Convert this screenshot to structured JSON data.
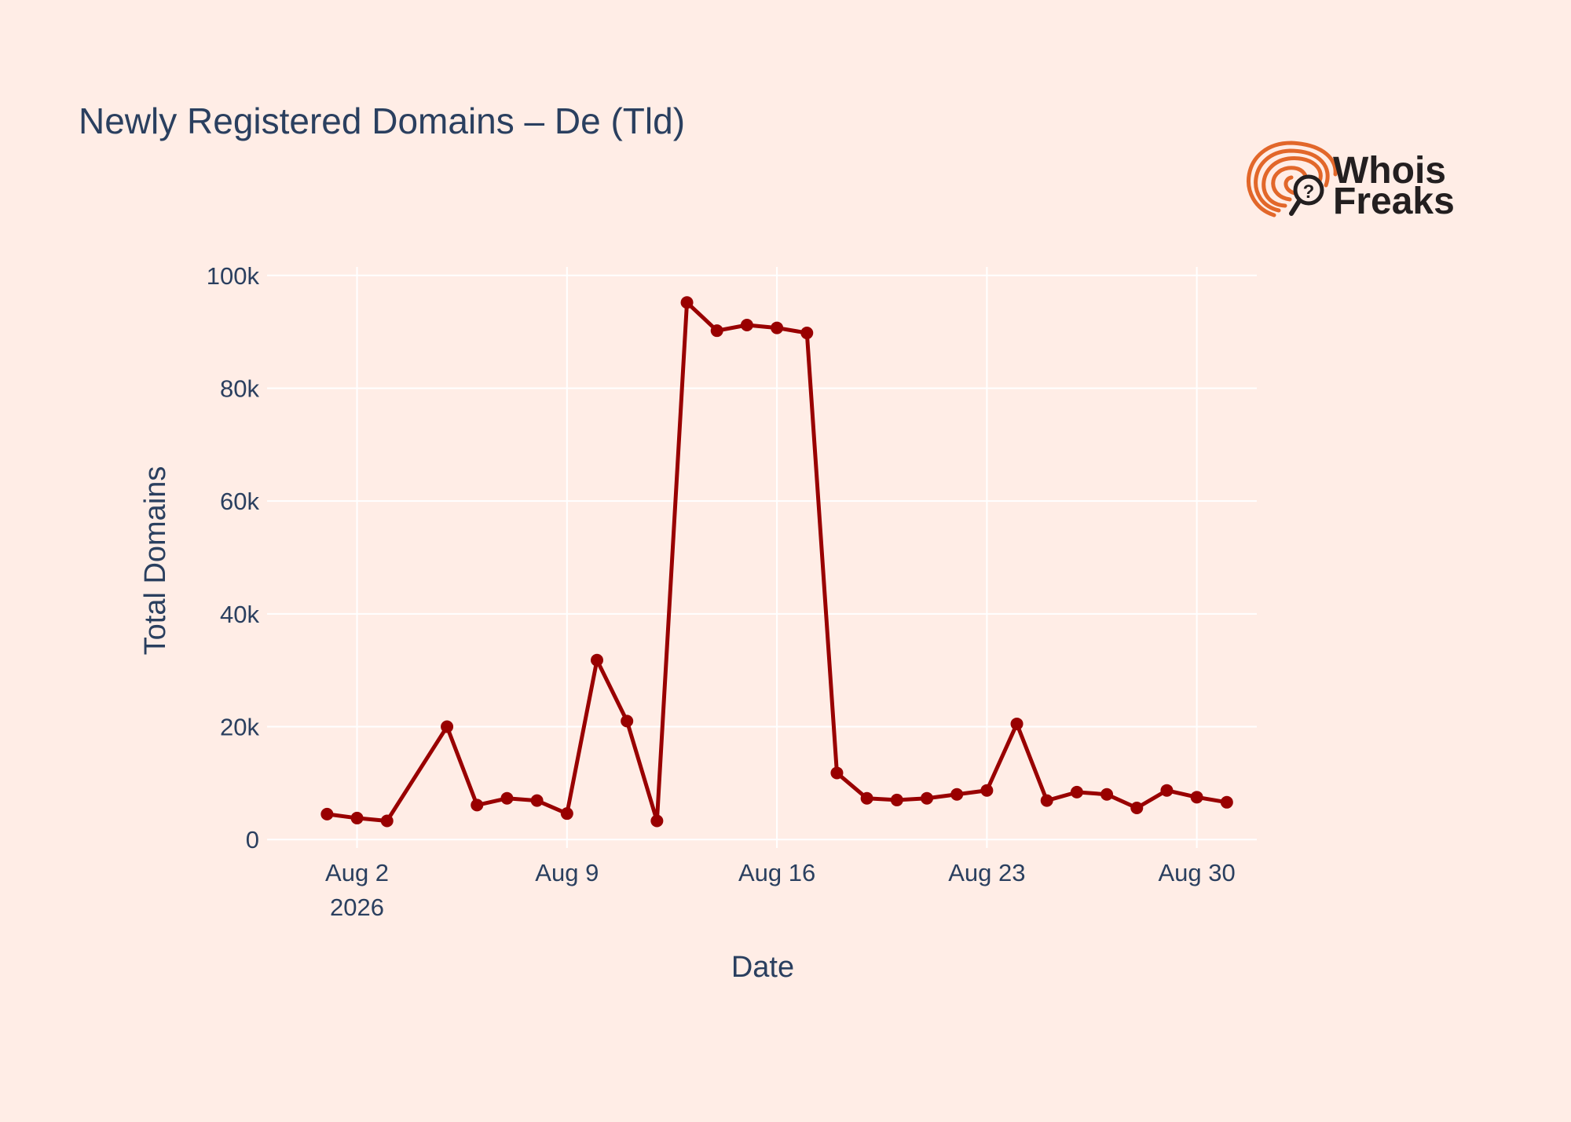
{
  "chart_data": {
    "type": "line",
    "title": "Newly Registered Domains – De (Tld)",
    "xlabel": "Date",
    "ylabel": "Total Domains",
    "x_ticks": [
      {
        "date": "2026-08-02",
        "label": "Aug 2",
        "sublabel": "2026"
      },
      {
        "date": "2026-08-09",
        "label": "Aug 9",
        "sublabel": ""
      },
      {
        "date": "2026-08-16",
        "label": "Aug 16",
        "sublabel": ""
      },
      {
        "date": "2026-08-23",
        "label": "Aug 23",
        "sublabel": ""
      },
      {
        "date": "2026-08-30",
        "label": "Aug 30",
        "sublabel": ""
      }
    ],
    "y_ticks": [
      {
        "value": 0,
        "label": "0"
      },
      {
        "value": 20000,
        "label": "20k"
      },
      {
        "value": 40000,
        "label": "40k"
      },
      {
        "value": 60000,
        "label": "60k"
      },
      {
        "value": 80000,
        "label": "80k"
      },
      {
        "value": 100000,
        "label": "100k"
      }
    ],
    "xlim": [
      "2026-07-30",
      "2026-09-01"
    ],
    "ylim": [
      -1500,
      101500
    ],
    "grid": true,
    "legend": "none",
    "series": [
      {
        "color": "#990000",
        "x": [
          "2026-08-01",
          "2026-08-02",
          "2026-08-03",
          "2026-08-05",
          "2026-08-06",
          "2026-08-07",
          "2026-08-08",
          "2026-08-09",
          "2026-08-10",
          "2026-08-11",
          "2026-08-12",
          "2026-08-13",
          "2026-08-14",
          "2026-08-15",
          "2026-08-16",
          "2026-08-17",
          "2026-08-18",
          "2026-08-19",
          "2026-08-20",
          "2026-08-21",
          "2026-08-22",
          "2026-08-23",
          "2026-08-24",
          "2026-08-25",
          "2026-08-26",
          "2026-08-27",
          "2026-08-28",
          "2026-08-29",
          "2026-08-30",
          "2026-08-31"
        ],
        "y": [
          4500,
          3800,
          3300,
          20000,
          6100,
          7300,
          6900,
          4600,
          31800,
          21000,
          3300,
          95200,
          90200,
          91200,
          90700,
          89800,
          11800,
          7300,
          7000,
          7300,
          8000,
          8700,
          20500,
          6900,
          8400,
          8000,
          5600,
          8700,
          7500,
          6600
        ]
      }
    ]
  },
  "logo": {
    "line1": "Whois",
    "line2": "Freaks",
    "icon": "fingerprint-search-icon",
    "colors": {
      "mark": "#e2672a",
      "text": "#231f20"
    }
  },
  "colors": {
    "background": "#ffede6",
    "grid": "#ffffff",
    "text": "#2a3f5f",
    "line": "#990000"
  }
}
